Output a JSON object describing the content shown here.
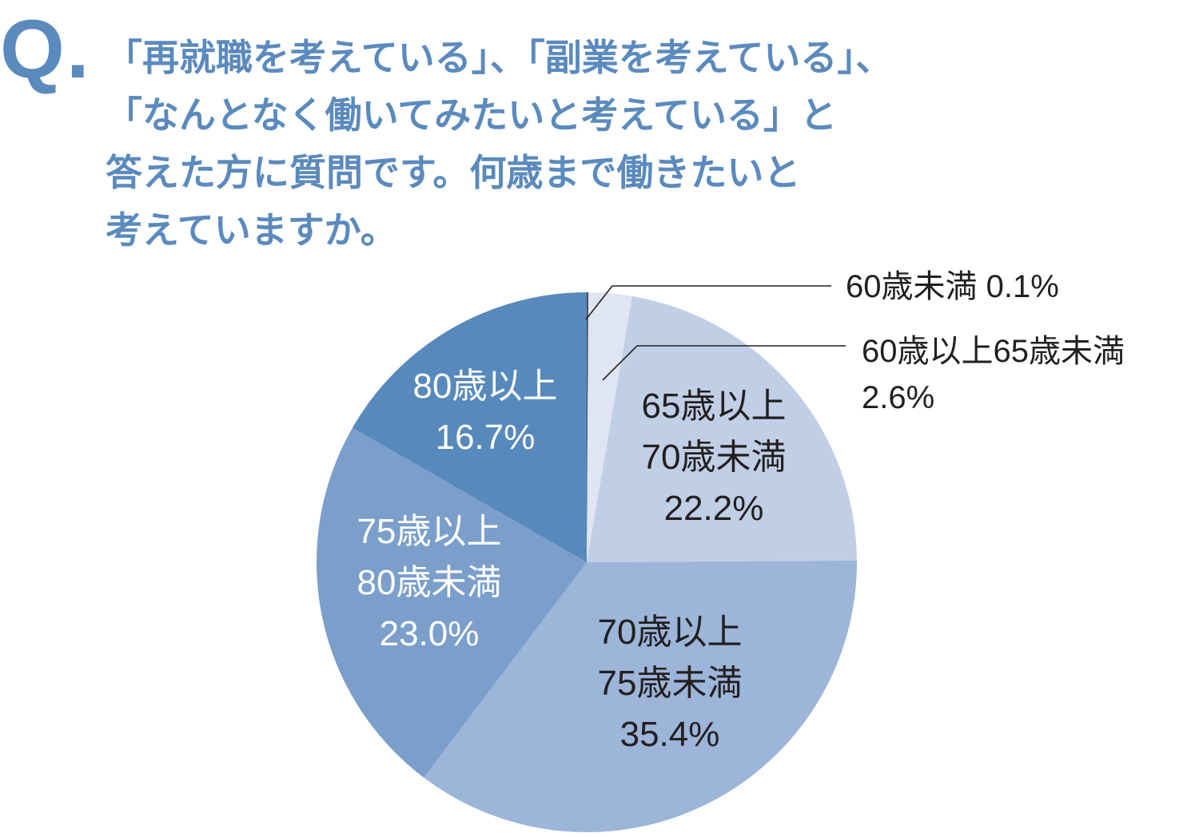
{
  "question": {
    "mark": "Q.",
    "lines": [
      "「再就職を考えている」、「副業を考えている」、",
      "「なんとなく働いてみたいと考えている」と",
      "答えた方に質問です。何歳まで働きたいと",
      "考えていますか。"
    ]
  },
  "colors": {
    "question_text": "#5b8abd",
    "label_dark": "#231f20",
    "label_light": "#ffffff",
    "leader_line": "#231f20"
  },
  "chart_data": {
    "type": "pie",
    "start": "12 o'clock, clockwise",
    "slices": [
      {
        "label_lines": [
          "60歳未満",
          "0.1%"
        ],
        "callout": [
          "60歳未満 0.1%"
        ],
        "value": 0.1,
        "color": "#4d4d4f"
      },
      {
        "label_lines": [
          "60歳以上65歳未満",
          "2.6%"
        ],
        "callout": [
          "60歳以上65歳未満",
          "2.6%"
        ],
        "value": 2.6,
        "color": "#dfe5f2"
      },
      {
        "label_lines": [
          "65歳以上",
          "70歳未満",
          "22.2%"
        ],
        "value": 22.2,
        "color": "#c0cfe6",
        "text_color": "#231f20"
      },
      {
        "label_lines": [
          "70歳以上",
          "75歳未満",
          "35.4%"
        ],
        "value": 35.4,
        "color": "#9cb5d9",
        "text_color": "#231f20"
      },
      {
        "label_lines": [
          "75歳以上",
          "80歳未満",
          "23.0%"
        ],
        "value": 23.0,
        "color": "#7b9fca",
        "text_color": "#ffffff"
      },
      {
        "label_lines": [
          "80歳以上",
          "16.7%"
        ],
        "value": 16.7,
        "color": "#5789bc",
        "text_color": "#ffffff"
      }
    ]
  }
}
